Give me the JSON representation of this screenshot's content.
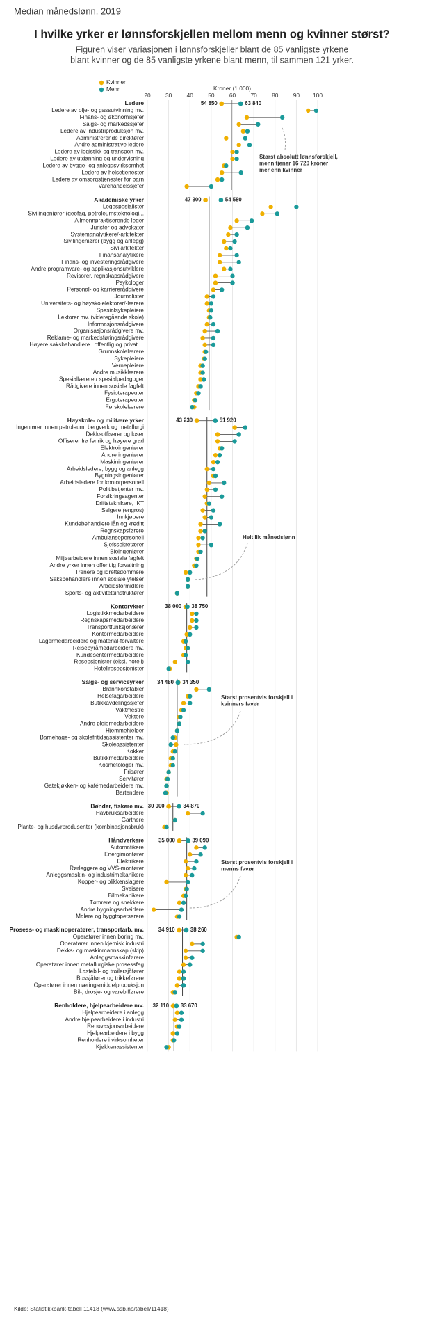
{
  "chart_data": {
    "type": "dumbbell",
    "kicker": "Median månedslønn. 2019",
    "title": "I hvilke yrker er lønnsforskjellen mellom menn og kvinner størst?",
    "subtitle": [
      "Figuren viser variasjonen i lønnsforskjeller blant de 85 vanligste yrkene",
      "blant kvinner og de 85 vanligste yrkene blant menn, til sammen 121 yrker."
    ],
    "xlabel": "Kroner (1 000)",
    "xlim": [
      20,
      100
    ],
    "xticks": [
      20,
      30,
      40,
      50,
      60,
      70,
      80,
      90,
      100
    ],
    "grid": true,
    "series": [
      {
        "name": "Kvinner",
        "color": "#f0b000"
      },
      {
        "name": "Menn",
        "color": "#1a9a9a"
      }
    ],
    "source": "Kilde: Statistikkbank-tabell 11418 (www.ssb.no/tabell/11418)",
    "annotations": [
      {
        "lines": [
          "Størst absolutt lønnsforskjell,",
          "menn tjener 16 720 kroner",
          "mer enn kvinner"
        ]
      },
      {
        "lines": [
          "Helt lik månedslønn"
        ]
      },
      {
        "lines": [
          "Størst prosentvis forskjell i",
          "kvinners favør"
        ]
      },
      {
        "lines": [
          "Størst prosentvis forskjell i",
          "menns favør"
        ]
      }
    ],
    "groups": [
      {
        "name": "Ledere",
        "median": {
          "values": [
            54.85,
            63.84
          ],
          "value_labels": [
            "54 850",
            "63 840"
          ]
        },
        "total": 59.5,
        "categories": [
          "Ledere av olje- og gassutvinning mv.",
          "Finans- og økonomisjefer",
          "Salgs- og markedssjefer",
          "Ledere av industriproduksjon mv.",
          "Administrerende direktører",
          "Andre administrative ledere",
          "Ledere av logistikk og transport mv.",
          "Ledere av utdanning og undervisning",
          "Ledere av bygge- og anleggsvirksomhet",
          "Ledere av helsetjenester",
          "Ledere av omsorgstjenester for barn",
          "Varehandelssjefer"
        ],
        "values": [
          [
            95.5,
            99.3
          ],
          [
            66.7,
            83.4
          ],
          [
            63,
            72
          ],
          [
            65,
            67
          ],
          [
            57,
            66
          ],
          [
            63,
            68
          ],
          [
            60,
            62
          ],
          [
            60,
            62
          ],
          [
            56,
            57
          ],
          [
            55,
            64
          ],
          [
            53,
            55
          ],
          [
            38.5,
            50
          ]
        ]
      },
      {
        "name": "Akademiske yrker",
        "median": {
          "values": [
            47.3,
            54.58
          ],
          "value_labels": [
            "47 300",
            "54 580"
          ]
        },
        "total": 49,
        "categories": [
          "Legespesialister",
          "Sivilingeniører (geofag, petroleumsteknologi...",
          "Allmennpraktiserende leger",
          "Jurister og advokater",
          "Systemanalytikere/-arkitekter",
          "Sivilingeniører (bygg og anlegg)",
          "Sivilarkitekter",
          "Finansanalytikere",
          "Finans- og investeringsrådgivere",
          "Andre programvare- og applikasjonsutviklere",
          "Revisorer, regnskapsrådgivere",
          "Psykologer",
          "Personal- og karriererådgivere",
          "Journalister",
          "Universitets- og høyskolelektorer/-lærere",
          "Spesialsykepleiere",
          "Lektorer mv. (videregående skole)",
          "Informasjonsrådgivere",
          "Organisasjonsrådgivere mv.",
          "Reklame- og markedsføringsrådgivere",
          "Høyere saksbehandlere i offentlig og privat ...",
          "Grunnskolelærere",
          "Sykepleiere",
          "Vernepleiere",
          "Andre musikklærere",
          "Spesiallærere / spesialpedagoger",
          "Rådgivere innen sosiale fagfelt",
          "Fysioterapeuter",
          "Ergoterapeuter",
          "Førskolelærere"
        ],
        "values": [
          [
            78,
            90
          ],
          [
            74,
            81
          ],
          [
            62,
            69
          ],
          [
            59,
            67
          ],
          [
            58,
            62
          ],
          [
            56,
            61
          ],
          [
            57,
            59
          ],
          [
            54,
            62
          ],
          [
            54,
            63
          ],
          [
            56,
            59
          ],
          [
            52,
            60
          ],
          [
            52,
            60
          ],
          [
            51,
            55
          ],
          [
            48,
            51
          ],
          [
            48,
            50
          ],
          [
            49,
            50
          ],
          [
            49,
            49.5
          ],
          [
            48,
            51
          ],
          [
            47,
            53
          ],
          [
            46,
            51
          ],
          [
            47,
            51
          ],
          [
            47,
            47.5
          ],
          [
            46.5,
            47
          ],
          [
            45,
            46
          ],
          [
            45,
            46
          ],
          [
            45,
            46.5
          ],
          [
            44,
            45
          ],
          [
            43,
            44
          ],
          [
            42,
            42.5
          ],
          [
            42,
            41
          ]
        ]
      },
      {
        "name": "Høyskole- og militære yrker",
        "median": {
          "values": [
            43.23,
            51.92
          ],
          "value_labels": [
            "43 230",
            "51 920"
          ]
        },
        "total": 48,
        "categories": [
          "Ingeniører innen petroleum, bergverk og metallurgi",
          "Dekksoffiserer og loser",
          "Offiserer fra fenrik og høyere grad",
          "Elektroingeniører",
          "Andre ingeniører",
          "Maskiningeniører",
          "Arbeidsledere, bygg og anlegg",
          "Bygningsingeniører",
          "Arbeidsledere for kontorpersonell",
          "Politibetjenter mv.",
          "Forsikringsagenter",
          "Driftsteknikere, IKT",
          "Selgere (engros)",
          "Innkjøpere",
          "Kundebehandlere lån og kreditt",
          "Regnskapsførere",
          "Ambulansepersonell",
          "Sjefssekretærer",
          "Bioingeniører",
          "Miljøarbeidere innen sosiale fagfelt",
          "Andre yrker innen offentlig forvaltning",
          "Trenere og idrettsdommere",
          "Saksbehandlere innen sosiale ytelser",
          "Arbeidsformidlere",
          "Sports- og aktivitetsinstruktører"
        ],
        "values": [
          [
            61,
            66
          ],
          [
            53,
            63
          ],
          [
            53,
            61
          ],
          [
            54,
            55
          ],
          [
            52,
            54
          ],
          [
            51,
            53
          ],
          [
            48,
            51
          ],
          [
            51,
            52
          ],
          [
            49,
            56
          ],
          [
            48,
            52
          ],
          [
            47,
            55
          ],
          [
            48,
            49
          ],
          [
            46,
            51
          ],
          [
            47,
            50
          ],
          [
            45,
            54
          ],
          [
            45,
            47
          ],
          [
            44,
            46
          ],
          [
            44,
            50
          ],
          [
            44,
            45
          ],
          [
            43,
            43.5
          ],
          [
            42,
            43
          ],
          [
            38,
            40
          ],
          [
            39,
            39
          ],
          [
            39,
            39
          ],
          [
            34,
            34
          ]
        ]
      },
      {
        "name": "Kontorykrer",
        "median": {
          "values": [
            38.0,
            38.75
          ],
          "value_labels": [
            "38 000",
            "38 750"
          ]
        },
        "total": 38.5,
        "categories": [
          "Logistikkmedarbeidere",
          "Regnskapsmedarbeidere",
          "Transportfunksjonærer",
          "Kontormedarbeidere",
          "Lagermedarbeidere og material-forvaltere",
          "Reisebyråmedarbeidere mv.",
          "Kundesentermedarbeidere",
          "Resepsjonister (eksl. hotell)",
          "Hotellresepsjonister"
        ],
        "values": [
          [
            41,
            43
          ],
          [
            41,
            43
          ],
          [
            40,
            43
          ],
          [
            38.5,
            40
          ],
          [
            37,
            38
          ],
          [
            38,
            39
          ],
          [
            37,
            38
          ],
          [
            33,
            39
          ],
          [
            30.5,
            30
          ]
        ]
      },
      {
        "name": "Salgs- og serviceyrker",
        "median": {
          "values": [
            34.48,
            34.35
          ],
          "value_labels": [
            "34 480",
            "34 350"
          ]
        },
        "total": 34,
        "categories": [
          "Brannkonstabler",
          "Helsefagarbeidere",
          "Butikkavdelingssjefer",
          "Vaktmestre",
          "Vektere",
          "Andre pleiemedarbeidere",
          "Hjemmehjelper",
          "Barnehage- og skolefritidsassistenter mv.",
          "Skoleassistenter",
          "Kokker",
          "Butikkmedarbeidere",
          "Kosmetologer mv.",
          "Frisører",
          "Servitører",
          "Gatekjøkken- og kafémedarbeidere mv.",
          "Bartendere"
        ],
        "values": [
          [
            43,
            49
          ],
          [
            39,
            40
          ],
          [
            37,
            40
          ],
          [
            36,
            37
          ],
          [
            35,
            35.5
          ],
          [
            35,
            35
          ],
          [
            34,
            34
          ],
          [
            33,
            32
          ],
          [
            33.5,
            31
          ],
          [
            32,
            33
          ],
          [
            31,
            32
          ],
          [
            31,
            32
          ],
          [
            30,
            30
          ],
          [
            29,
            29.5
          ],
          [
            29,
            29
          ],
          [
            29,
            28.5
          ]
        ]
      },
      {
        "name": "Bønder, fiskere mv.",
        "median": {
          "values": [
            30.0,
            34.87
          ],
          "value_labels": [
            "30 000",
            "34 870"
          ]
        },
        "total": 32,
        "categories": [
          "Havbruksarbeidere",
          "Gartnere",
          "Plante- og husdyrprodusenter (kombinasjonsbruk)"
        ],
        "values": [
          [
            39,
            46
          ],
          [
            33,
            33
          ],
          [
            28,
            29
          ]
        ]
      },
      {
        "name": "Håndverkere",
        "median": {
          "values": [
            35.0,
            39.09
          ],
          "value_labels": [
            "35 000",
            "39 090"
          ]
        },
        "total": 38.5,
        "categories": [
          "Automatikere",
          "Energimontører",
          "Elektrikere",
          "Rørleggere og VVS-montører",
          "Anleggsmaskin- og industrimekanikere",
          "Kopper- og blikkenslagere",
          "Sveisere",
          "Bilmekanikere",
          "Tømrere og snekkere",
          "Andre bygningsarbeidere",
          "Malere og byggtapetserere"
        ],
        "values": [
          [
            43,
            47
          ],
          [
            40,
            45
          ],
          [
            38,
            43
          ],
          [
            39,
            42
          ],
          [
            38,
            41
          ],
          [
            29,
            39
          ],
          [
            38,
            38.5
          ],
          [
            37,
            38
          ],
          [
            35,
            37
          ],
          [
            23,
            36
          ],
          [
            34,
            35
          ]
        ]
      },
      {
        "name": "Prosess- og maskinoperatører, transportarb. mv.",
        "median": {
          "values": [
            34.91,
            38.26
          ],
          "value_labels": [
            "34 910",
            "38 260"
          ]
        },
        "total": 36.5,
        "categories": [
          "Operatører innen boring mv.",
          "Operatører innen kjemisk industri",
          "Dekks- og maskinmannskap (skip)",
          "Anleggsmaskinførere",
          "Operatører innen metallurgiske prosessfag",
          "Lastebil- og trailersjåfører",
          "Bussjåfører og trikkeførere",
          "Operatører innen næringsmiddelproduksjon",
          "Bil-, drosje- og varebilførere"
        ],
        "values": [
          [
            62,
            63
          ],
          [
            41,
            46
          ],
          [
            38,
            46
          ],
          [
            38,
            41
          ],
          [
            37,
            40
          ],
          [
            35,
            37
          ],
          [
            35,
            37
          ],
          [
            34,
            37
          ],
          [
            32,
            33
          ]
        ]
      },
      {
        "name": "Renholdere, hjelpearbeidere mv.",
        "median": {
          "values": [
            32.11,
            33.67
          ],
          "value_labels": [
            "32 110",
            "33 670"
          ]
        },
        "total": 32.5,
        "categories": [
          "Hjelpearbeidere i anlegg",
          "Andre hjelpearbeidere i industri",
          "Renovasjonsarbeidere",
          "Hjelpearbeidere i bygg",
          "Renholdere i virksomheter",
          "Kjøkkenassistenter"
        ],
        "values": [
          [
            34,
            36
          ],
          [
            33,
            36
          ],
          [
            34,
            35
          ],
          [
            32,
            34
          ],
          [
            32,
            32.5
          ],
          [
            30,
            29
          ]
        ]
      }
    ]
  }
}
